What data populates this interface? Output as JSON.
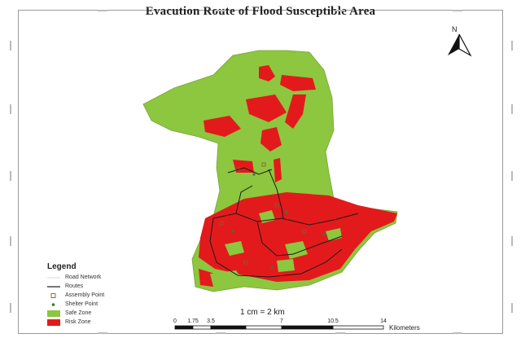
{
  "map": {
    "title": "Evacution Route of Flood Susceptible Area",
    "north_label": "N",
    "scale_text": "1 cm = 2 km",
    "scale_ticks": [
      "0",
      "1.75",
      "3.5",
      "7",
      "10.5",
      "14"
    ],
    "scale_units": "Kilometers"
  },
  "legend": {
    "title": "Legend",
    "items": [
      {
        "label": "Road Network",
        "icon": "road-line"
      },
      {
        "label": "Routes",
        "icon": "route-line"
      },
      {
        "label": "Assembly Point",
        "icon": "square-marker"
      },
      {
        "label": "Shelter Point",
        "icon": "dot-marker"
      },
      {
        "label": "Safe Zone",
        "icon": "fill-swatch",
        "color": "#8dc63f"
      },
      {
        "label": "Risk Zone",
        "icon": "fill-swatch",
        "color": "#e31a1c"
      }
    ]
  },
  "colors": {
    "safe_zone": "#8dc63f",
    "risk_zone": "#e31a1c",
    "routes": "#1a1a1a",
    "road_network": "#d9d9d9"
  }
}
